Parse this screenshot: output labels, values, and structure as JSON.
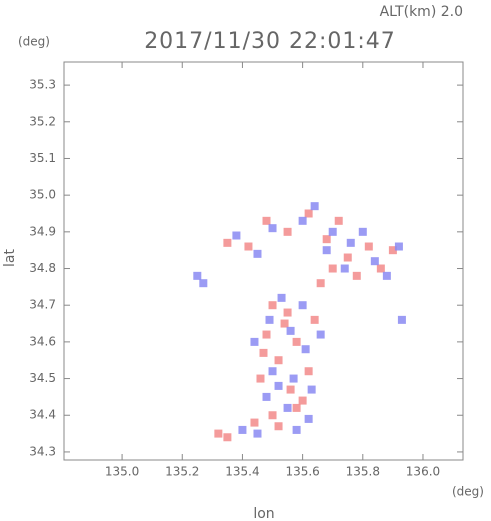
{
  "chart_data": {
    "type": "scatter",
    "title": "2017/11/30 22:01:47",
    "annotations": [
      "ALT(km)  2.0",
      "(deg)",
      "(deg)"
    ],
    "xlabel": "lon",
    "ylabel": "lat",
    "xlim": [
      134.807,
      136.133
    ],
    "ylim": [
      34.278,
      35.363
    ],
    "xticks": [
      {
        "value": 135,
        "label": "135.0"
      },
      135.2,
      135.4,
      135.6,
      135.8,
      {
        "value": 136,
        "label": "136.0"
      }
    ],
    "yticks": [
      34.3,
      34.4,
      34.5,
      34.6,
      34.7,
      34.8,
      34.9,
      {
        "value": 35,
        "label": "35.0"
      },
      35.1,
      35.2,
      35.3
    ],
    "series": [
      {
        "color": "#f28a8a",
        "x": [
          135.5,
          135.55,
          135.48,
          135.58,
          135.52,
          135.62,
          135.46,
          135.56,
          135.6,
          135.5,
          135.44,
          135.32,
          135.35,
          135.54,
          135.64,
          135.47,
          135.58,
          135.52,
          135.7,
          135.75,
          135.82,
          135.68,
          135.86,
          135.55,
          135.48,
          135.62,
          135.72,
          135.42,
          135.78,
          135.9,
          135.66,
          135.35
        ],
        "values": [
          34.7,
          34.68,
          34.62,
          34.6,
          34.55,
          34.52,
          34.5,
          34.47,
          34.44,
          34.4,
          34.38,
          34.35,
          34.34,
          34.65,
          34.66,
          34.57,
          34.42,
          34.37,
          34.8,
          34.83,
          34.86,
          34.88,
          34.8,
          34.9,
          34.93,
          34.95,
          34.93,
          34.86,
          34.78,
          34.85,
          34.76,
          34.87
        ]
      },
      {
        "color": "#8a8af2",
        "x": [
          135.53,
          135.6,
          135.49,
          135.56,
          135.61,
          135.5,
          135.57,
          135.63,
          135.48,
          135.55,
          135.62,
          135.45,
          135.4,
          135.58,
          135.66,
          135.44,
          135.52,
          135.68,
          135.74,
          135.8,
          135.84,
          135.92,
          135.7,
          135.6,
          135.5,
          135.45,
          135.88,
          135.93,
          135.25,
          135.27,
          135.64,
          135.38,
          135.76
        ],
        "values": [
          34.72,
          34.7,
          34.66,
          34.63,
          34.58,
          34.52,
          34.5,
          34.47,
          34.45,
          34.42,
          34.39,
          34.35,
          34.36,
          34.36,
          34.62,
          34.6,
          34.48,
          34.85,
          34.8,
          34.9,
          34.82,
          34.86,
          34.9,
          34.93,
          34.91,
          34.84,
          34.78,
          34.66,
          34.78,
          34.76,
          34.97,
          34.89,
          34.87
        ]
      }
    ]
  }
}
